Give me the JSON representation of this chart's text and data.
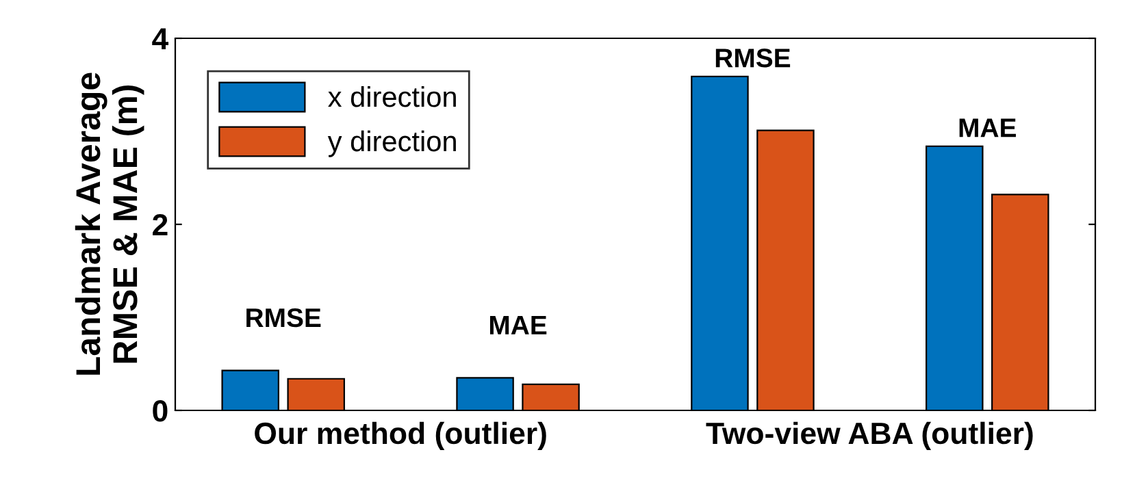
{
  "chart_data": {
    "type": "bar",
    "categories": [
      null,
      null,
      null,
      null
    ],
    "ylim": [
      0,
      4
    ],
    "yticks": [
      0,
      2,
      4
    ],
    "ylabel": "Landmark Average\nRMSE & MAE (m)",
    "series": [
      {
        "name": "x direction",
        "color": "#0072bd",
        "values": [
          0.43,
          0.35,
          3.59,
          2.84
        ]
      },
      {
        "name": "y direction",
        "color": "#d95319",
        "values": [
          0.34,
          0.28,
          3.01,
          2.32
        ]
      }
    ],
    "annotations": [
      "RMSE",
      "MAE",
      "RMSE",
      "MAE",
      "Our method (outlier)",
      "Two-view ABA (outlier)"
    ],
    "legend": "top left",
    "grid": false
  }
}
